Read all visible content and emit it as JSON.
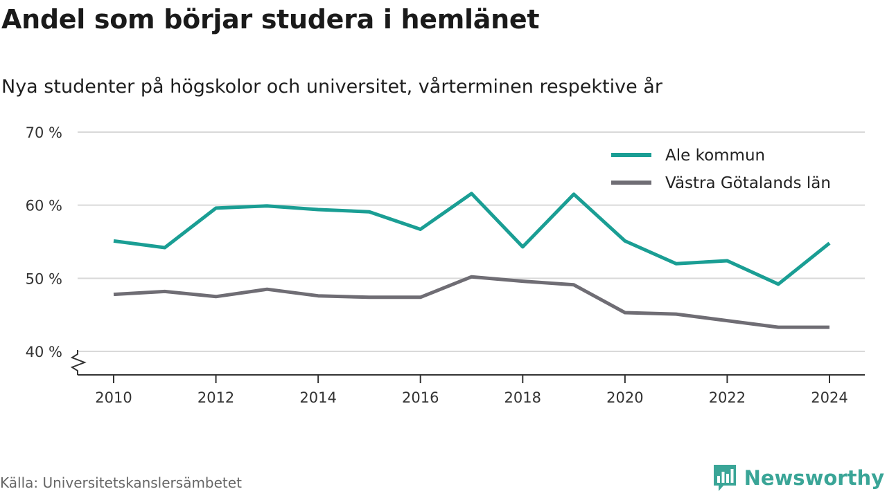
{
  "header": {
    "title": "Andel som börjar studera i hemlänet",
    "subtitle": "Nya studenter på högskolor och universitet, vårterminen respektive år"
  },
  "footer": {
    "source": "Källa: Universitetskanslersämbetet",
    "brand": "Newsworthy"
  },
  "colors": {
    "ale": "#1a9e94",
    "vg": "#6f6d74",
    "brand": "#3aa597",
    "grid": "#d9d9d9",
    "axis": "#333333"
  },
  "icons": {
    "brand_logo": "bar-chart-speech-bubble-icon",
    "axis_break": "zigzag-axis-break-icon"
  },
  "chart_data": {
    "type": "line",
    "x": [
      2010,
      2011,
      2012,
      2013,
      2014,
      2015,
      2016,
      2017,
      2018,
      2019,
      2020,
      2021,
      2022,
      2023,
      2024
    ],
    "series": [
      {
        "name": "Ale kommun",
        "values": [
          55.1,
          54.2,
          59.6,
          59.9,
          59.4,
          59.1,
          56.7,
          61.6,
          54.3,
          61.5,
          55.1,
          52.0,
          52.4,
          49.2,
          54.8
        ]
      },
      {
        "name": "Västra Götalands län",
        "values": [
          47.8,
          48.2,
          47.5,
          48.5,
          47.6,
          47.4,
          47.4,
          50.2,
          49.6,
          49.1,
          45.3,
          45.1,
          44.2,
          43.3,
          43.3
        ]
      }
    ],
    "x_ticks": [
      "2010",
      "2012",
      "2014",
      "2016",
      "2018",
      "2020",
      "2022",
      "2024"
    ],
    "y_ticks": [
      "40 %",
      "50 %",
      "60 %",
      "70 %"
    ],
    "xlim": [
      2010,
      2024
    ],
    "ylim": [
      40,
      70
    ],
    "grid": true,
    "axis_break": true,
    "legend_position": "top-right"
  }
}
